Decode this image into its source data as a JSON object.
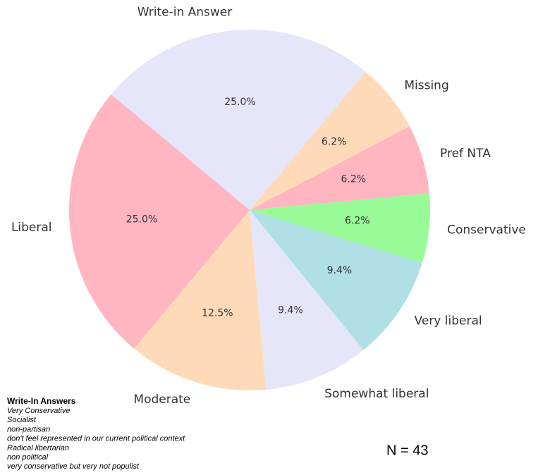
{
  "chart_data": {
    "type": "pie",
    "categories": [
      "Write-in Answer",
      "Liberal",
      "Moderate",
      "Somewhat liberal",
      "Very liberal",
      "Conservative",
      "Pref NTA",
      "Missing"
    ],
    "values": [
      25.0,
      25.0,
      12.5,
      9.4,
      9.4,
      6.2,
      6.2,
      6.2
    ],
    "value_labels": [
      "25.0%",
      "25.0%",
      "12.5%",
      "9.4%",
      "9.4%",
      "6.2%",
      "6.2%",
      "6.2%"
    ],
    "colors": [
      "#e6e6fa",
      "#ffb6c1",
      "#ffdab9",
      "#e6e6fa",
      "#b0e0e6",
      "#98fb98",
      "#ffb6c1",
      "#ffdab9"
    ],
    "annotation": "N = 43",
    "write_in_title": "Write-In Answers",
    "write_in_answers": [
      "Very Conservative",
      "Socialist",
      "non-partisan",
      "don't feel represented in our current political context",
      "Radical libertarian",
      "non political",
      "very conservative but very not populist"
    ]
  }
}
